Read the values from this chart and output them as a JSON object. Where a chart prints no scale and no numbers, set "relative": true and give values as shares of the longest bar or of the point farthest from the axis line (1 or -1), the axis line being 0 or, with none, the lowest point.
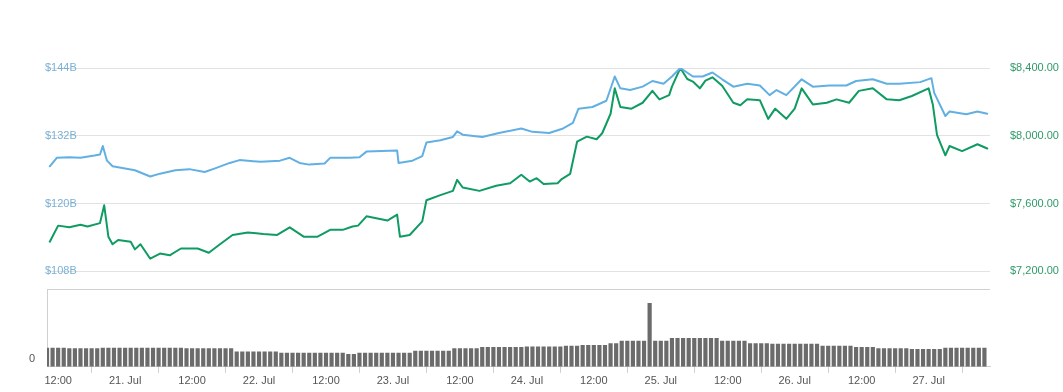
{
  "chart_data": [
    {
      "type": "line",
      "grid": "y",
      "tick_labels": "y",
      "xlim": [
        "--07-20T10:00",
        "--07-27T11:00"
      ],
      "ylim": [
        108,
        144
      ],
      "yticks": [
        {
          "value": 108,
          "label": "$108B"
        },
        {
          "value": 120,
          "label": "$120B"
        },
        {
          "value": 132,
          "label": "$132B"
        },
        {
          "value": 144,
          "label": "$144B"
        }
      ],
      "y2lim": [
        7200,
        8400
      ],
      "y2ticks": [
        {
          "value": 7200,
          "label": "$7,200.00"
        },
        {
          "value": 7600,
          "label": "$7,600.00"
        },
        {
          "value": 8000,
          "label": "$8,000.00"
        },
        {
          "value": 8400,
          "label": "$8,400.00"
        }
      ],
      "series": [
        {
          "color": "#62b0e3",
          "x": [
            "--07-20T10:30",
            "--07-20T11:45",
            "--07-20T14:00",
            "--07-20T16:00",
            "--07-20T18:30",
            "--07-20T19:30",
            "--07-20T20:00",
            "--07-20T20:45",
            "--07-20T21:45",
            "--07-20T23:00",
            "--07-21T01:45",
            "--07-21T04:30",
            "--07-21T06:15",
            "--07-21T09:00",
            "--07-21T11:30",
            "--07-21T14:15",
            "--07-21T16:00",
            "--07-21T18:45",
            "--07-21T20:30",
            "--07-22T00:15",
            "--07-22T03:45",
            "--07-22T05:30",
            "--07-22T07:15",
            "--07-22T09:00",
            "--07-22T11:45",
            "--07-22T12:45",
            "--07-22T16:15",
            "--07-22T18:00",
            "--07-22T19:15",
            "--07-23T00:45",
            "--07-23T01:00",
            "--07-23T03:30",
            "--07-23T05:15",
            "--07-23T06:00",
            "--07-23T08:30",
            "--07-23T10:45",
            "--07-23T11:30",
            "--07-23T12:30",
            "--07-23T16:00",
            "--07-23T19:00",
            "--07-23T23:00",
            "--07-24T01:00",
            "--07-24T04:00",
            "--07-24T06:30",
            "--07-24T08:15",
            "--07-24T09:15",
            "--07-24T11:45",
            "--07-24T14:15",
            "--07-24T15:45",
            "--07-24T16:45",
            "--07-24T18:30",
            "--07-24T20:45",
            "--07-24T22:30",
            "--07-25T00:30",
            "--07-25T02:00",
            "--07-25T03:30",
            "--07-25T05:45",
            "--07-25T07:30",
            "--07-25T09:15",
            "--07-25T11:00",
            "--07-25T13:00",
            "--07-25T15:30",
            "--07-25T17:45",
            "--07-25T19:30",
            "--07-25T20:45",
            "--07-25T22:30",
            "--07-26T01:15",
            "--07-26T03:15",
            "--07-26T06:15",
            "--07-26T09:15",
            "--07-26T11:00",
            "--07-26T14:00",
            "--07-26T16:30",
            "--07-26T18:45",
            "--07-26T22:30",
            "--07-27T00:30",
            "--07-27T01:00",
            "--07-27T03:00",
            "--07-27T03:45",
            "--07-27T06:45",
            "--07-27T08:45",
            "--07-27T10:30"
          ],
          "values": [
            126.6,
            128.1,
            128.2,
            128.1,
            128.5,
            128.7,
            130.2,
            127.6,
            126.6,
            126.4,
            125.9,
            124.8,
            125.3,
            125.9,
            126.1,
            125.6,
            126.2,
            127.2,
            127.7,
            127.4,
            127.6,
            128.1,
            127.2,
            126.9,
            127.1,
            128.1,
            128.1,
            128.2,
            129.2,
            129.4,
            127.2,
            127.6,
            128.4,
            130.8,
            131.2,
            131.8,
            132.8,
            132.2,
            131.8,
            132.5,
            133.3,
            132.7,
            132.5,
            133.3,
            134.3,
            136.8,
            137.1,
            138.2,
            142.5,
            140.4,
            140.1,
            140.7,
            141.7,
            141.2,
            142.5,
            144,
            142.5,
            142.5,
            143.2,
            142.0,
            140.7,
            141.2,
            140.9,
            139.2,
            140.1,
            139.2,
            142.0,
            140.7,
            140.9,
            140.9,
            141.7,
            142.0,
            141.2,
            141.2,
            141.5,
            142.2,
            139.6,
            135.5,
            136.3,
            135.8,
            136.3,
            135.9
          ]
        },
        {
          "color": "#109b63",
          "axis": "y2",
          "x": [
            "--07-20T10:30",
            "--07-20T12:00",
            "--07-20T14:00",
            "--07-20T16:00",
            "--07-20T17:15",
            "--07-20T19:30",
            "--07-20T20:15",
            "--07-20T21:00",
            "--07-20T21:45",
            "--07-20T22:45",
            "--07-21T01:00",
            "--07-21T01:45",
            "--07-21T02:45",
            "--07-21T04:30",
            "--07-21T06:15",
            "--07-21T08:00",
            "--07-21T10:00",
            "--07-21T13:00",
            "--07-21T15:00",
            "--07-21T17:00",
            "--07-21T19:15",
            "--07-21T22:00",
            "--07-22T00:45",
            "--07-22T03:15",
            "--07-22T05:30",
            "--07-22T08:00",
            "--07-22T10:30",
            "--07-22T12:45",
            "--07-22T15:00",
            "--07-22T16:45",
            "--07-22T17:45",
            "--07-22T19:15",
            "--07-22T23:00",
            "--07-23T00:45",
            "--07-23T01:15",
            "--07-23T03:00",
            "--07-23T05:15",
            "--07-23T06:00",
            "--07-23T08:30",
            "--07-23T10:45",
            "--07-23T11:30",
            "--07-23T12:30",
            "--07-23T15:30",
            "--07-23T18:30",
            "--07-23T21:00",
            "--07-23T23:00",
            "--07-24T00:30",
            "--07-24T01:45",
            "--07-24T03:00",
            "--07-24T05:30",
            "--07-24T06:15",
            "--07-24T07:45",
            "--07-24T09:00",
            "--07-24T10:45",
            "--07-24T12:30",
            "--07-24T13:30",
            "--07-24T15:00",
            "--07-24T15:45",
            "--07-24T16:45",
            "--07-24T18:45",
            "--07-24T20:45",
            "--07-24T22:30",
            "--07-24T23:45",
            "--07-25T01:30",
            "--07-25T02:00",
            "--07-25T03:30",
            "--07-25T04:45",
            "--07-25T05:45",
            "--07-25T07:00",
            "--07-25T08:00",
            "--07-25T09:15",
            "--07-25T11:00",
            "--07-25T13:00",
            "--07-25T14:15",
            "--07-25T15:30",
            "--07-25T17:45",
            "--07-25T19:15",
            "--07-25T20:30",
            "--07-25T22:30",
            "--07-26T00:00",
            "--07-26T01:15",
            "--07-26T03:15",
            "--07-26T05:45",
            "--07-26T07:30",
            "--07-26T09:45",
            "--07-26T11:30",
            "--07-26T14:00",
            "--07-26T16:30",
            "--07-26T18:45",
            "--07-26T21:00",
            "--07-27T00:00",
            "--07-27T00:45",
            "--07-27T01:30",
            "--07-27T03:00",
            "--07-27T03:45",
            "--07-27T06:00",
            "--07-27T08:45",
            "--07-27T10:30"
          ],
          "values": [
            7375,
            7470,
            7460,
            7475,
            7465,
            7485,
            7590,
            7405,
            7360,
            7385,
            7375,
            7330,
            7360,
            7275,
            7305,
            7295,
            7335,
            7335,
            7310,
            7360,
            7415,
            7430,
            7420,
            7415,
            7460,
            7405,
            7405,
            7445,
            7445,
            7465,
            7470,
            7525,
            7500,
            7535,
            7405,
            7415,
            7495,
            7620,
            7650,
            7675,
            7740,
            7695,
            7675,
            7705,
            7720,
            7770,
            7730,
            7750,
            7715,
            7720,
            7745,
            7775,
            7965,
            7995,
            7980,
            8015,
            8130,
            8280,
            8170,
            8160,
            8195,
            8265,
            8215,
            8240,
            8290,
            8400,
            8335,
            8320,
            8280,
            8325,
            8345,
            8295,
            8195,
            8180,
            8215,
            8210,
            8100,
            8160,
            8100,
            8160,
            8280,
            8185,
            8195,
            8215,
            8195,
            8265,
            8280,
            8215,
            8210,
            8235,
            8280,
            8185,
            8005,
            7885,
            7940,
            7910,
            7950,
            7925
          ]
        }
      ]
    },
    {
      "type": "bar",
      "relative": true,
      "tick_labels": "x",
      "annotations": [
        "0"
      ],
      "xlim": [
        "--07-20T10:00",
        "--07-27T11:00"
      ],
      "xticks": [
        {
          "value": "--07-20T12:00",
          "label": "12:00"
        },
        {
          "value": "--07-21T00:00",
          "label": "21. Jul"
        },
        {
          "value": "--07-21T12:00",
          "label": "12:00"
        },
        {
          "value": "--07-22T00:00",
          "label": "22. Jul"
        },
        {
          "value": "--07-22T12:00",
          "label": "12:00"
        },
        {
          "value": "--07-23T00:00",
          "label": "23. Jul"
        },
        {
          "value": "--07-23T12:00",
          "label": "12:00"
        },
        {
          "value": "--07-24T00:00",
          "label": "24. Jul"
        },
        {
          "value": "--07-24T12:00",
          "label": "12:00"
        },
        {
          "value": "--07-25T00:00",
          "label": "25. Jul"
        },
        {
          "value": "--07-25T12:00",
          "label": "12:00"
        },
        {
          "value": "--07-26T00:00",
          "label": "26. Jul"
        },
        {
          "value": "--07-26T12:00",
          "label": "12:00"
        },
        {
          "value": "--07-27T00:00",
          "label": "27. Jul"
        }
      ],
      "series": [
        {
          "color": "#6b6b6b",
          "x": [
            "--07-20T10:00",
            "--07-20T11:00",
            "--07-20T12:00",
            "--07-20T13:00",
            "--07-20T14:00",
            "--07-20T15:00",
            "--07-20T16:00",
            "--07-20T17:00",
            "--07-20T18:00",
            "--07-20T19:00",
            "--07-20T20:00",
            "--07-20T21:00",
            "--07-20T22:00",
            "--07-20T23:00",
            "--07-21T00:00",
            "--07-21T01:00",
            "--07-21T02:00",
            "--07-21T03:00",
            "--07-21T04:00",
            "--07-21T05:00",
            "--07-21T06:00",
            "--07-21T07:00",
            "--07-21T08:00",
            "--07-21T09:00",
            "--07-21T10:00",
            "--07-21T11:00",
            "--07-21T12:00",
            "--07-21T13:00",
            "--07-21T14:00",
            "--07-21T15:00",
            "--07-21T16:00",
            "--07-21T17:00",
            "--07-21T18:00",
            "--07-21T19:00",
            "--07-21T20:00",
            "--07-21T21:00",
            "--07-21T22:00",
            "--07-21T23:00",
            "--07-22T00:00",
            "--07-22T01:00",
            "--07-22T02:00",
            "--07-22T03:00",
            "--07-22T04:00",
            "--07-22T05:00",
            "--07-22T06:00",
            "--07-22T07:00",
            "--07-22T08:00",
            "--07-22T09:00",
            "--07-22T10:00",
            "--07-22T11:00",
            "--07-22T12:00",
            "--07-22T13:00",
            "--07-22T14:00",
            "--07-22T15:00",
            "--07-22T16:00",
            "--07-22T17:00",
            "--07-22T18:00",
            "--07-22T19:00",
            "--07-22T20:00",
            "--07-22T21:00",
            "--07-22T22:00",
            "--07-22T23:00",
            "--07-23T00:00",
            "--07-23T01:00",
            "--07-23T02:00",
            "--07-23T03:00",
            "--07-23T04:00",
            "--07-23T05:00",
            "--07-23T06:00",
            "--07-23T07:00",
            "--07-23T08:00",
            "--07-23T09:00",
            "--07-23T10:00",
            "--07-23T11:00",
            "--07-23T12:00",
            "--07-23T13:00",
            "--07-23T14:00",
            "--07-23T15:00",
            "--07-23T16:00",
            "--07-23T17:00",
            "--07-23T18:00",
            "--07-23T19:00",
            "--07-23T20:00",
            "--07-23T21:00",
            "--07-23T22:00",
            "--07-23T23:00",
            "--07-24T00:00",
            "--07-24T01:00",
            "--07-24T02:00",
            "--07-24T03:00",
            "--07-24T04:00",
            "--07-24T05:00",
            "--07-24T06:00",
            "--07-24T07:00",
            "--07-24T08:00",
            "--07-24T09:00",
            "--07-24T10:00",
            "--07-24T11:00",
            "--07-24T12:00",
            "--07-24T13:00",
            "--07-24T14:00",
            "--07-24T15:00",
            "--07-24T16:00",
            "--07-24T17:00",
            "--07-24T18:00",
            "--07-24T19:00",
            "--07-24T20:00",
            "--07-24T21:00",
            "--07-24T22:00",
            "--07-24T23:00",
            "--07-25T00:00",
            "--07-25T01:00",
            "--07-25T02:00",
            "--07-25T03:00",
            "--07-25T04:00",
            "--07-25T05:00",
            "--07-25T06:00",
            "--07-25T07:00",
            "--07-25T08:00",
            "--07-25T09:00",
            "--07-25T10:00",
            "--07-25T11:00",
            "--07-25T12:00",
            "--07-25T13:00",
            "--07-25T14:00",
            "--07-25T15:00",
            "--07-25T16:00",
            "--07-25T17:00",
            "--07-25T18:00",
            "--07-25T19:00",
            "--07-25T20:00",
            "--07-25T21:00",
            "--07-25T22:00",
            "--07-25T23:00",
            "--07-26T00:00",
            "--07-26T01:00",
            "--07-26T02:00",
            "--07-26T03:00",
            "--07-26T04:00",
            "--07-26T05:00",
            "--07-26T06:00",
            "--07-26T07:00",
            "--07-26T08:00",
            "--07-26T09:00",
            "--07-26T10:00",
            "--07-26T11:00",
            "--07-26T12:00",
            "--07-26T13:00",
            "--07-26T14:00",
            "--07-26T15:00",
            "--07-26T16:00",
            "--07-26T17:00",
            "--07-26T18:00",
            "--07-26T19:00",
            "--07-26T20:00",
            "--07-26T21:00",
            "--07-26T22:00",
            "--07-26T23:00",
            "--07-27T00:00",
            "--07-27T01:00",
            "--07-27T02:00",
            "--07-27T03:00",
            "--07-27T04:00",
            "--07-27T05:00",
            "--07-27T06:00",
            "--07-27T07:00",
            "--07-27T08:00",
            "--07-27T09:00",
            "--07-27T10:00"
          ],
          "values": [
            0.3,
            0.3,
            0.3,
            0.3,
            0.29,
            0.29,
            0.29,
            0.29,
            0.29,
            0.29,
            0.3,
            0.3,
            0.3,
            0.3,
            0.3,
            0.3,
            0.3,
            0.3,
            0.3,
            0.3,
            0.3,
            0.3,
            0.3,
            0.3,
            0.3,
            0.29,
            0.29,
            0.29,
            0.29,
            0.29,
            0.29,
            0.29,
            0.29,
            0.29,
            0.24,
            0.24,
            0.24,
            0.24,
            0.24,
            0.24,
            0.24,
            0.24,
            0.22,
            0.22,
            0.22,
            0.22,
            0.22,
            0.22,
            0.22,
            0.22,
            0.22,
            0.22,
            0.22,
            0.22,
            0.2,
            0.2,
            0.22,
            0.22,
            0.22,
            0.22,
            0.22,
            0.22,
            0.22,
            0.22,
            0.22,
            0.22,
            0.25,
            0.25,
            0.25,
            0.25,
            0.25,
            0.25,
            0.25,
            0.29,
            0.29,
            0.29,
            0.29,
            0.29,
            0.31,
            0.31,
            0.31,
            0.31,
            0.31,
            0.31,
            0.31,
            0.31,
            0.32,
            0.32,
            0.32,
            0.32,
            0.32,
            0.32,
            0.32,
            0.33,
            0.33,
            0.33,
            0.34,
            0.34,
            0.34,
            0.34,
            0.34,
            0.37,
            0.37,
            0.41,
            0.41,
            0.41,
            0.41,
            0.41,
            1,
            0.41,
            0.41,
            0.41,
            0.45,
            0.45,
            0.45,
            0.45,
            0.45,
            0.45,
            0.45,
            0.45,
            0.45,
            0.41,
            0.41,
            0.41,
            0.41,
            0.41,
            0.37,
            0.37,
            0.37,
            0.37,
            0.36,
            0.36,
            0.36,
            0.36,
            0.36,
            0.36,
            0.36,
            0.36,
            0.36,
            0.33,
            0.33,
            0.33,
            0.33,
            0.33,
            0.33,
            0.31,
            0.31,
            0.31,
            0.31,
            0.29,
            0.29,
            0.29,
            0.29,
            0.29,
            0.29,
            0.28,
            0.28,
            0.28,
            0.28,
            0.28,
            0.28,
            0.3,
            0.3,
            0.3,
            0.3,
            0.3,
            0.3,
            0.3,
            0.3
          ]
        }
      ]
    }
  ]
}
